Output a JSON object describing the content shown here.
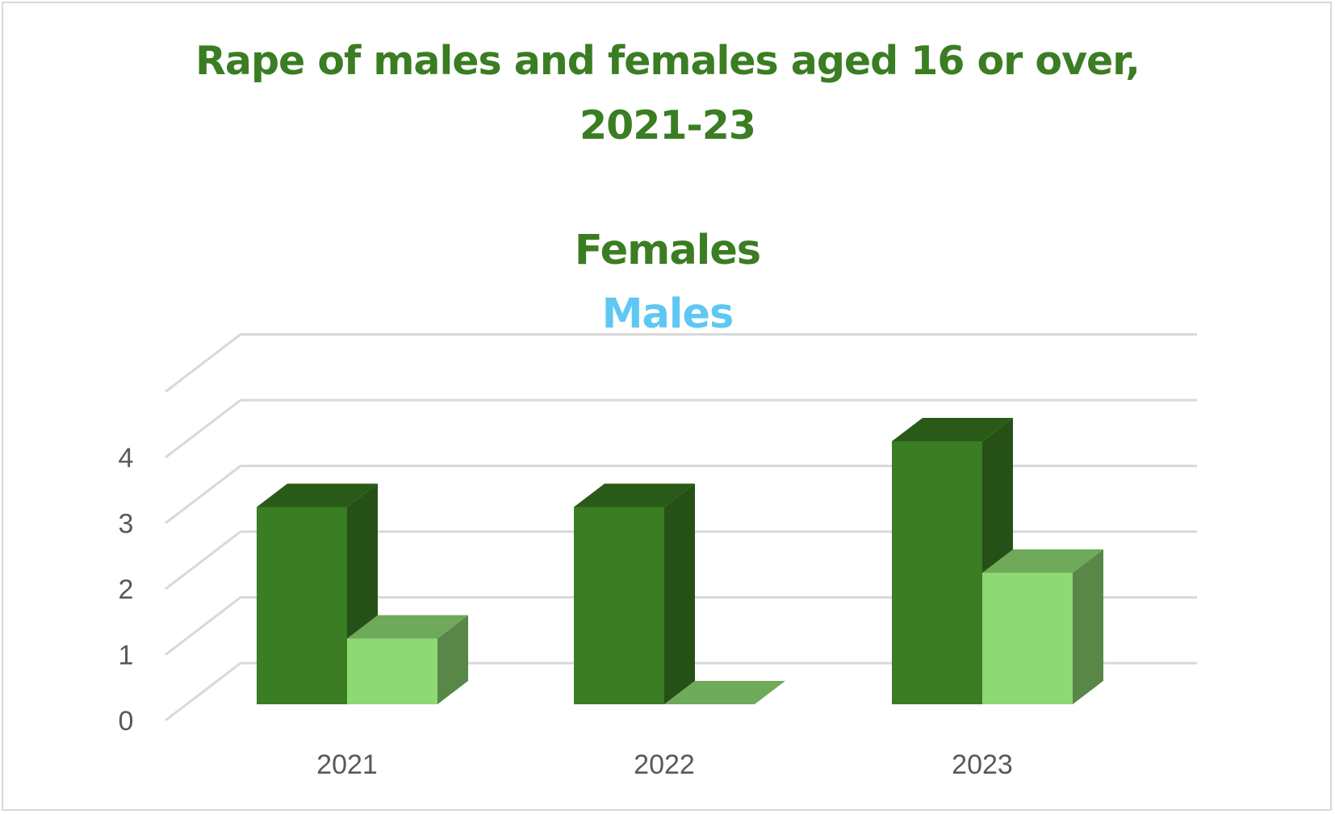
{
  "chart_data": {
    "type": "bar",
    "title": "Rape of males and females aged 16 or over, 2021-23",
    "title_lines": [
      "Rape of males and females aged 16 or over,",
      "2021-23"
    ],
    "categories": [
      "2021",
      "2022",
      "2023"
    ],
    "series": [
      {
        "name": "Females",
        "values": [
          3,
          3,
          4
        ],
        "color": "#3a7d22",
        "legend_color": "#3a7d22"
      },
      {
        "name": "Males",
        "values": [
          1,
          0,
          2
        ],
        "color": "#8ed973",
        "legend_color": "#5ec8f2"
      }
    ],
    "ylim": [
      0,
      5
    ],
    "y_ticks": [
      "0",
      "1",
      "2",
      "3",
      "4"
    ],
    "xlabel": "",
    "ylabel": "",
    "grid": true,
    "legend_position": "top",
    "style": "3d-clustered-column",
    "colors": {
      "gridline": "#d9d9d9",
      "tick_text": "#595959",
      "frame": "#d9d9d9"
    }
  }
}
